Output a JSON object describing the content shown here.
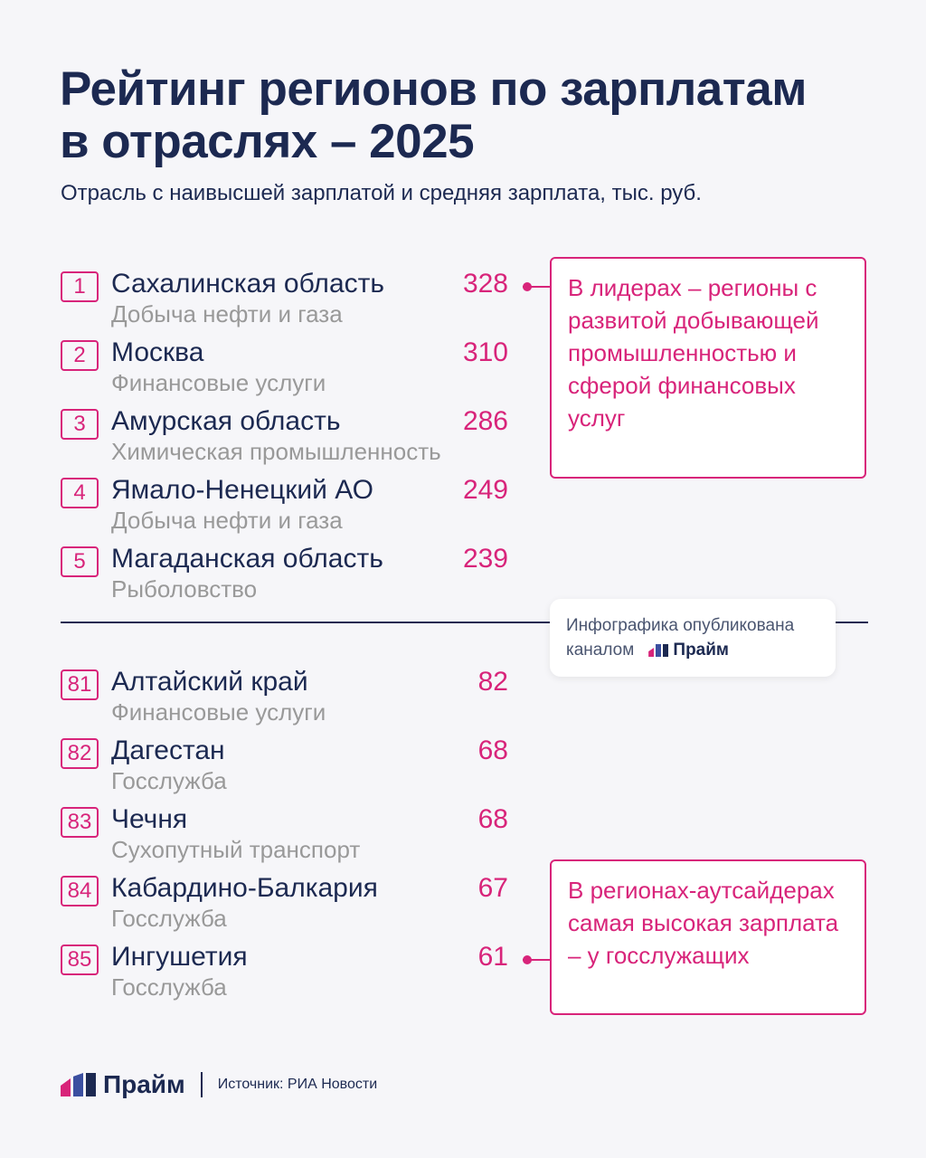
{
  "header": {
    "title_line1": "Рейтинг регионов по зарплатам",
    "title_line2": "в отраслях – 2025",
    "subtitle": "Отрасль с наивысшей зарплатой и средняя зарплата, тыс. руб."
  },
  "top": [
    {
      "rank": "1",
      "region": "Сахалинская область",
      "industry": "Добыча нефти и газа",
      "salary": "328"
    },
    {
      "rank": "2",
      "region": "Москва",
      "industry": "Финансовые услуги",
      "salary": "310"
    },
    {
      "rank": "3",
      "region": "Амурская область",
      "industry": "Химическая промышленность",
      "salary": "286"
    },
    {
      "rank": "4",
      "region": "Ямало-Ненецкий АО",
      "industry": "Добыча нефти и газа",
      "salary": "249"
    },
    {
      "rank": "5",
      "region": "Магаданская область",
      "industry": "Рыболовство",
      "salary": "239"
    }
  ],
  "bottom": [
    {
      "rank": "81",
      "region": "Алтайский край",
      "industry": "Финансовые услуги",
      "salary": "82"
    },
    {
      "rank": "82",
      "region": "Дагестан",
      "industry": "Госслужба",
      "salary": "68"
    },
    {
      "rank": "83",
      "region": "Чечня",
      "industry": "Сухопутный транспорт",
      "salary": "68"
    },
    {
      "rank": "84",
      "region": "Кабардино-Балкария",
      "industry": "Госслужба",
      "salary": "67"
    },
    {
      "rank": "85",
      "region": "Ингушетия",
      "industry": "Госслужба",
      "salary": "61"
    }
  ],
  "callouts": {
    "top": "В лидерах – регионы с развитой добывающей промышленностью и сферой финансовых услуг",
    "bottom": "В регионах-аутсайдерах самая высокая зарплата – у госслужащих"
  },
  "chip": {
    "line1": "Инфографика опубликована",
    "line2": "каналом",
    "logo": "Прайм"
  },
  "footer": {
    "logo": "Прайм",
    "source": "Источник: РИА Новости"
  },
  "colors": {
    "accent": "#d8247a",
    "navy": "#1c2951",
    "logo_blue": "#3b4fa0"
  }
}
